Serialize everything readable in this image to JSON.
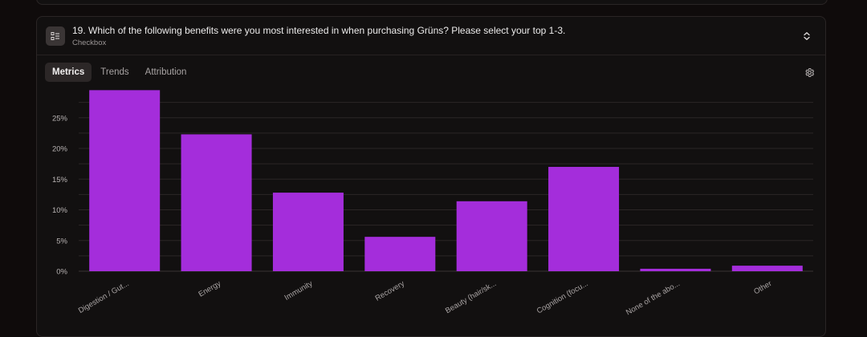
{
  "question": {
    "title": "19. Which of the following benefits were you most interested in when purchasing Grüns? Please select your top 1-3.",
    "type_label": "Checkbox",
    "icon": "checklist-icon"
  },
  "tabs": [
    {
      "label": "Metrics",
      "active": true
    },
    {
      "label": "Trends",
      "active": false
    },
    {
      "label": "Attribution",
      "active": false
    }
  ],
  "icons": {
    "expand": "chevron-up-down-icon",
    "settings": "gear-icon"
  },
  "colors": {
    "bar": "#a42ddb",
    "background": "#0f0b0b",
    "card": "#121010"
  },
  "chart_data": {
    "type": "bar",
    "categories": [
      "Digestion / Gut...",
      "Energy",
      "Immunity",
      "Recovery",
      "Beauty (hair/sk...",
      "Cognition (focu...",
      "None of the abo...",
      "Other"
    ],
    "values": [
      29.5,
      22.3,
      12.8,
      5.6,
      11.4,
      17.0,
      0.4,
      0.9
    ],
    "y_ticks": [
      0,
      5,
      10,
      15,
      20,
      25
    ],
    "y_tick_labels": [
      "0%",
      "5%",
      "10%",
      "15%",
      "20%",
      "25%"
    ],
    "ylim": [
      0,
      28.5
    ],
    "unit": "%",
    "grid": true,
    "legend": "none"
  }
}
